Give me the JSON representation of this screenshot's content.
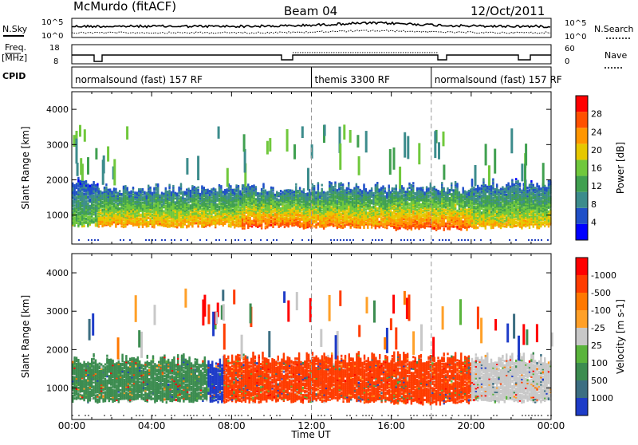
{
  "header": {
    "title": "McMurdo (fitACF)",
    "beam": "Beam 04",
    "date": "12/Oct/2011"
  },
  "strip_labels": {
    "nsky": "N.Sky",
    "nsearch": "N.Search",
    "freq": "Freq.",
    "freq_unit": "[MHz]",
    "nave": "Nave",
    "cpid": "CPID",
    "noise_left_ticks": [
      "10^5",
      "10^0"
    ],
    "noise_right_ticks": [
      "10^5",
      "10^0"
    ],
    "freq_ticks": [
      "18",
      "8"
    ],
    "nave_ticks": [
      "60",
      "0"
    ]
  },
  "cpid_segments": [
    {
      "label": "normalsound (fast) 157 RF",
      "start": 0.0,
      "end": 12.0
    },
    {
      "label": "themis 3300 RF",
      "start": 12.0,
      "end": 18.0
    },
    {
      "label": "normalsound (fast) 157 RF",
      "start": 18.0,
      "end": 24.0
    }
  ],
  "chart_data": [
    {
      "type": "heatmap",
      "title": "",
      "ylabel": "Slant Range [km]",
      "xlabel": "Time UT",
      "xlim": [
        0,
        24
      ],
      "ylim": [
        180,
        4500
      ],
      "yticks": [
        1000,
        2000,
        3000,
        4000
      ],
      "xtick_labels": [
        "00:00",
        "04:00",
        "08:00",
        "12:00",
        "16:00",
        "20:00",
        "00:00"
      ],
      "colorbar": {
        "label": "Power [dB]",
        "tick_labels": [
          "4",
          "8",
          "12",
          "16",
          "20",
          "24",
          "28"
        ],
        "colors": [
          "#0000ff",
          "#2050c8",
          "#3c8c8c",
          "#40a050",
          "#70c83c",
          "#e6c800",
          "#ff9600",
          "#ff5000",
          "#ff0000"
        ]
      },
      "bands": [
        {
          "start": 0.0,
          "end": 1.3,
          "range_low": 700,
          "range_high": 1900,
          "level": 16
        },
        {
          "start": 1.3,
          "end": 8.5,
          "range_low": 680,
          "range_high": 1650,
          "level": 24
        },
        {
          "start": 8.5,
          "end": 12.0,
          "range_low": 650,
          "range_high": 1650,
          "level": 28
        },
        {
          "start": 12.0,
          "end": 16.0,
          "range_low": 650,
          "range_high": 1700,
          "level": 26
        },
        {
          "start": 16.0,
          "end": 20.0,
          "range_low": 600,
          "range_high": 1700,
          "level": 28
        },
        {
          "start": 20.0,
          "end": 24.0,
          "range_low": 650,
          "range_high": 1800,
          "level": 22
        }
      ]
    },
    {
      "type": "heatmap",
      "title": "",
      "ylabel": "Slant Range [km]",
      "xlabel": "Time UT",
      "xlim": [
        0,
        24
      ],
      "ylim": [
        180,
        4500
      ],
      "yticks": [
        1000,
        2000,
        3000,
        4000
      ],
      "xtick_labels": [
        "00:00",
        "04:00",
        "08:00",
        "12:00",
        "16:00",
        "20:00",
        "00:00"
      ],
      "colorbar": {
        "label": "Velocity [m s-1]",
        "tick_labels": [
          "1000",
          "500",
          "100",
          "25",
          "-25",
          "-100",
          "-500",
          "-1000"
        ],
        "colors": [
          "#1e3cc8",
          "#3c6e82",
          "#3c8c50",
          "#5ab43c",
          "#c8c8c8",
          "#ffa028",
          "#ff7800",
          "#ff3c00",
          "#ff0000"
        ]
      },
      "bands": [
        {
          "start": 0.0,
          "end": 6.8,
          "range_low": 650,
          "range_high": 1650,
          "level": 200
        },
        {
          "start": 6.8,
          "end": 7.6,
          "range_low": 650,
          "range_high": 1600,
          "level": 800
        },
        {
          "start": 7.6,
          "end": 12.5,
          "range_low": 650,
          "range_high": 1700,
          "level": -300
        },
        {
          "start": 12.5,
          "end": 16.0,
          "range_low": 650,
          "range_high": 1700,
          "level": -400
        },
        {
          "start": 16.0,
          "end": 20.0,
          "range_low": 600,
          "range_high": 1700,
          "level": -300
        },
        {
          "start": 20.0,
          "end": 24.0,
          "range_low": 650,
          "range_high": 1700,
          "level": 0
        }
      ]
    }
  ]
}
